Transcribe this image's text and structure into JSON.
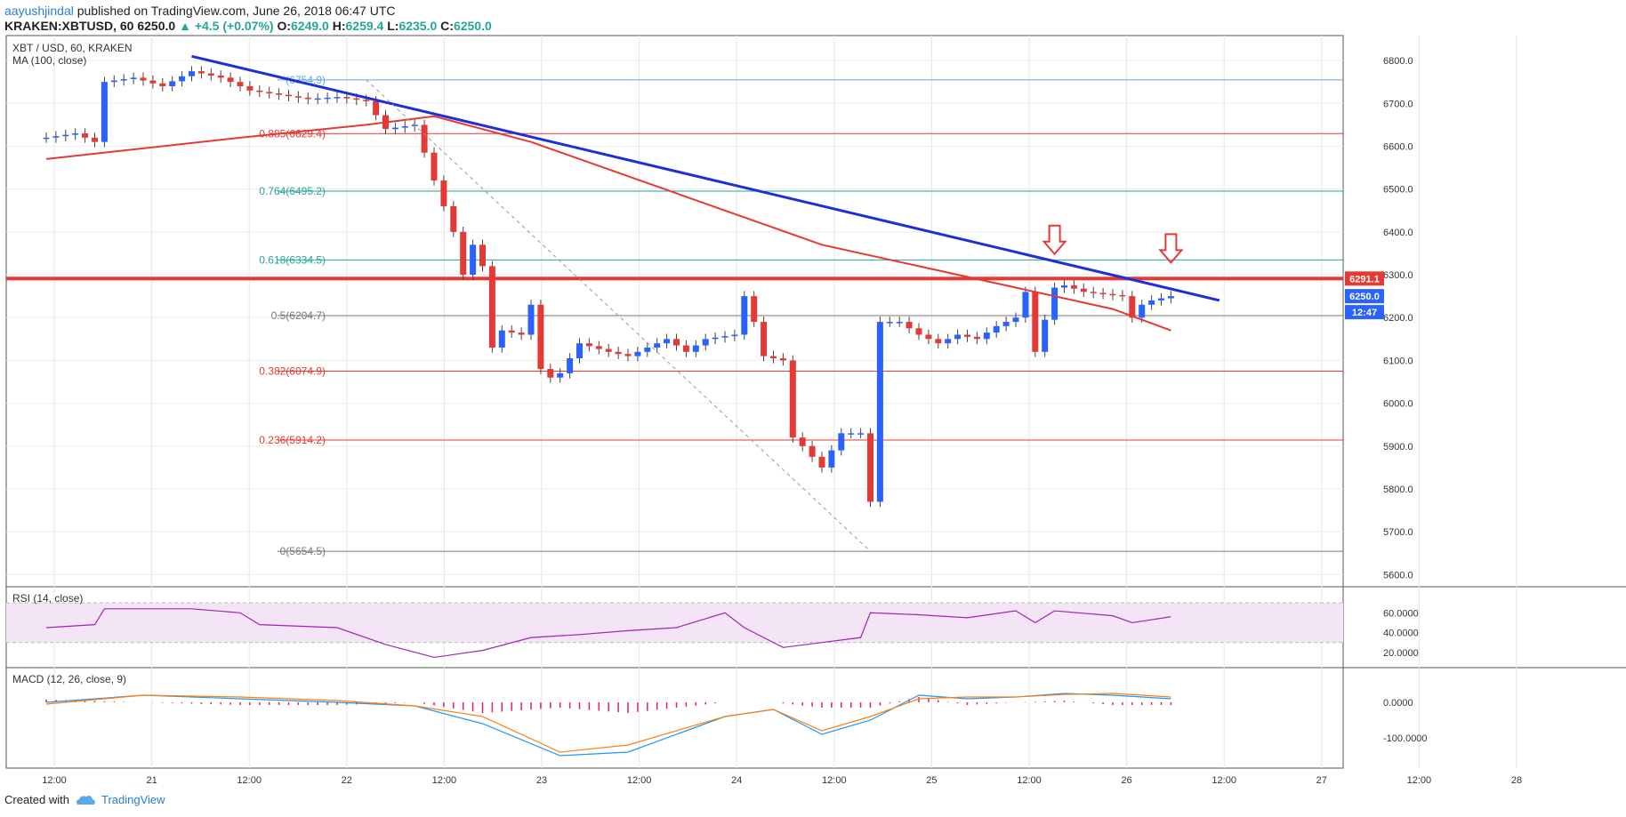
{
  "header": {
    "author": "aayushjindal",
    "published_text": "published on TradingView.com, June 26, 2018 06:47 UTC",
    "symbol": "KRAKEN:XBTUSD, 60",
    "last": "6250.0",
    "change": "+4.5 (+0.07%)",
    "o_label": "O:",
    "o_value": "6249.0",
    "h_label": "H:",
    "h_value": "6259.4",
    "l_label": "L:",
    "l_value": "6235.0",
    "c_label": "C:",
    "c_value": "6250.0"
  },
  "footer": {
    "created_with": "Created with",
    "brand": "TradingView"
  },
  "colors": {
    "up": "#2962ff",
    "down": "#e53935",
    "ma": "#e53935",
    "trend": "#1f2fd6",
    "rsi": "#9c27b0",
    "macd": "#2196f3",
    "signal": "#ff7f0e",
    "hist": "#e91e63"
  },
  "chart_data": [
    {
      "type": "candlestick",
      "title": "XBT / USD, 60, KRAKEN",
      "indicator": "MA (100, close)",
      "ylim": [
        5600,
        6800
      ],
      "yticks": [
        "6800.0",
        "6700.0",
        "6600.0",
        "6500.0",
        "6400.0",
        "6300.0",
        "6200.0",
        "6100.0",
        "6000.0",
        "5900.0",
        "5800.0",
        "5700.0",
        "5600.0"
      ],
      "xticks": [
        "12:00",
        "21",
        "12:00",
        "22",
        "12:00",
        "23",
        "12:00",
        "24",
        "12:00",
        "25",
        "12:00",
        "26",
        "12:00",
        "27",
        "12:00",
        "28"
      ],
      "price_badges": [
        {
          "label": "6291.1",
          "color": "#e53935"
        },
        {
          "label": "6250.0",
          "color": "#2962ff"
        },
        {
          "label": "12:47",
          "color": "#2962ff"
        }
      ],
      "fib_levels": [
        {
          "label": "(6754.9)",
          "value": 6754.9,
          "color": "#5aa9e6"
        },
        {
          "label": "0.885(6629.4)",
          "value": 6629.4,
          "color": "#e53935"
        },
        {
          "label": "0.764(6495.2)",
          "value": 6495.2,
          "color": "#26a69a"
        },
        {
          "label": "0.618(6334.5)",
          "value": 6334.5,
          "color": "#26a69a"
        },
        {
          "label": "0.5(6204.7)",
          "value": 6204.7,
          "color": "#777777"
        },
        {
          "label": "0.382(6074.9)",
          "value": 6074.9,
          "color": "#e53935"
        },
        {
          "label": "0.236(5914.2)",
          "value": 5914.2,
          "color": "#e53935"
        },
        {
          "label": "0(5654.5)",
          "value": 5654.5,
          "color": "#777777"
        }
      ],
      "resistance": 6291.1,
      "close_points": [
        [
          0,
          6620
        ],
        [
          3,
          6630
        ],
        [
          5,
          6610
        ],
        [
          6,
          6750
        ],
        [
          9,
          6760
        ],
        [
          12,
          6740
        ],
        [
          15,
          6775
        ],
        [
          18,
          6760
        ],
        [
          21,
          6730
        ],
        [
          24,
          6720
        ],
        [
          27,
          6710
        ],
        [
          30,
          6715
        ],
        [
          33,
          6705
        ],
        [
          35,
          6640
        ],
        [
          38,
          6650
        ],
        [
          40,
          6520
        ],
        [
          42,
          6400
        ],
        [
          43,
          6300
        ],
        [
          44,
          6370
        ],
        [
          45,
          6320
        ],
        [
          46,
          6130
        ],
        [
          47,
          6170
        ],
        [
          49,
          6160
        ],
        [
          50,
          6230
        ],
        [
          51,
          6080
        ],
        [
          52,
          6060
        ],
        [
          53,
          6070
        ],
        [
          55,
          6140
        ],
        [
          58,
          6120
        ],
        [
          60,
          6110
        ],
        [
          62,
          6130
        ],
        [
          64,
          6150
        ],
        [
          66,
          6120
        ],
        [
          68,
          6150
        ],
        [
          71,
          6160
        ],
        [
          72,
          6250
        ],
        [
          73,
          6190
        ],
        [
          74,
          6110
        ],
        [
          76,
          6100
        ],
        [
          77,
          5920
        ],
        [
          78,
          5900
        ],
        [
          80,
          5850
        ],
        [
          82,
          5930
        ],
        [
          84,
          5930
        ],
        [
          85,
          5770
        ],
        [
          86,
          6190
        ],
        [
          88,
          6190
        ],
        [
          90,
          6160
        ],
        [
          92,
          6140
        ],
        [
          94,
          6160
        ],
        [
          96,
          6150
        ],
        [
          98,
          6180
        ],
        [
          100,
          6200
        ],
        [
          101,
          6260
        ],
        [
          102,
          6120
        ],
        [
          104,
          6270
        ],
        [
          105,
          6275
        ],
        [
          107,
          6260
        ],
        [
          109,
          6255
        ],
        [
          111,
          6250
        ],
        [
          112,
          6200
        ],
        [
          113,
          6230
        ],
        [
          114,
          6240
        ],
        [
          116,
          6250
        ]
      ],
      "ma_points": [
        [
          0,
          6570
        ],
        [
          20,
          6620
        ],
        [
          33,
          6650
        ],
        [
          40,
          6670
        ],
        [
          50,
          6610
        ],
        [
          60,
          6530
        ],
        [
          70,
          6450
        ],
        [
          80,
          6370
        ],
        [
          90,
          6320
        ],
        [
          100,
          6270
        ],
        [
          110,
          6220
        ],
        [
          116,
          6170
        ]
      ],
      "trendline": [
        [
          15,
          6810
        ],
        [
          121,
          6240
        ]
      ],
      "diagonal": [
        [
          33,
          6754.9
        ],
        [
          85,
          5654.5
        ]
      ],
      "arrows_at": [
        [
          104,
          6340
        ],
        [
          116,
          6320
        ]
      ]
    },
    {
      "type": "line",
      "title": "RSI (14, close)",
      "ylim": [
        10,
        80
      ],
      "yticks": [
        "60.0000",
        "40.0000",
        "20.0000"
      ],
      "series": [
        {
          "values": [
            [
              0,
              45
            ],
            [
              5,
              48
            ],
            [
              6,
              64
            ],
            [
              15,
              64
            ],
            [
              20,
              60
            ],
            [
              22,
              48
            ],
            [
              30,
              45
            ],
            [
              35,
              28
            ],
            [
              40,
              15
            ],
            [
              45,
              22
            ],
            [
              50,
              35
            ],
            [
              55,
              38
            ],
            [
              60,
              42
            ],
            [
              65,
              45
            ],
            [
              70,
              60
            ],
            [
              72,
              45
            ],
            [
              76,
              25
            ],
            [
              80,
              30
            ],
            [
              84,
              35
            ],
            [
              85,
              60
            ],
            [
              90,
              58
            ],
            [
              95,
              55
            ],
            [
              100,
              62
            ],
            [
              102,
              50
            ],
            [
              104,
              62
            ],
            [
              110,
              57
            ],
            [
              112,
              50
            ],
            [
              116,
              56
            ]
          ]
        }
      ]
    },
    {
      "type": "line",
      "title": "MACD (12, 26, close, 9)",
      "ylim": [
        -170000,
        80000
      ],
      "yticks": [
        "0.0000",
        "-100.0000"
      ],
      "series": [
        {
          "name": "macd",
          "values": [
            [
              0,
              0
            ],
            [
              10,
              20
            ],
            [
              20,
              10
            ],
            [
              30,
              0
            ],
            [
              38,
              -10
            ],
            [
              45,
              -60
            ],
            [
              53,
              -150
            ],
            [
              60,
              -140
            ],
            [
              70,
              -40
            ],
            [
              75,
              -20
            ],
            [
              80,
              -90
            ],
            [
              85,
              -50
            ],
            [
              90,
              20
            ],
            [
              95,
              10
            ],
            [
              100,
              15
            ],
            [
              105,
              25
            ],
            [
              110,
              20
            ],
            [
              116,
              10
            ]
          ]
        },
        {
          "name": "signal",
          "values": [
            [
              0,
              -5
            ],
            [
              10,
              20
            ],
            [
              20,
              15
            ],
            [
              30,
              5
            ],
            [
              38,
              -10
            ],
            [
              45,
              -40
            ],
            [
              53,
              -140
            ],
            [
              60,
              -120
            ],
            [
              70,
              -40
            ],
            [
              75,
              -20
            ],
            [
              80,
              -80
            ],
            [
              85,
              -40
            ],
            [
              90,
              10
            ],
            [
              95,
              15
            ],
            [
              100,
              15
            ],
            [
              105,
              22
            ],
            [
              110,
              25
            ],
            [
              116,
              15
            ]
          ]
        }
      ]
    }
  ]
}
